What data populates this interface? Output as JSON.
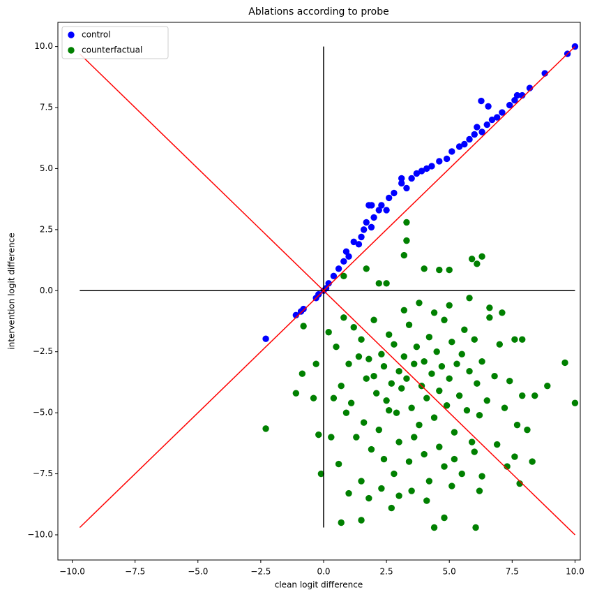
{
  "chart_data": {
    "type": "scatter",
    "title": "Ablations according to probe",
    "xlabel": "clean logit difference",
    "ylabel": "intervention logit difference",
    "xlim": [
      -10.57,
      10.21
    ],
    "ylim": [
      -11.03,
      10.99
    ],
    "xticks": [
      {
        "value": -10,
        "label": "−10.0"
      },
      {
        "value": -7.5,
        "label": "−7.5"
      },
      {
        "value": -5,
        "label": "−5.0"
      },
      {
        "value": -2.5,
        "label": "−2.5"
      },
      {
        "value": 0,
        "label": "0.0"
      },
      {
        "value": 2.5,
        "label": "2.5"
      },
      {
        "value": 5,
        "label": "5.0"
      },
      {
        "value": 7.5,
        "label": "7.5"
      },
      {
        "value": 10,
        "label": "10.0"
      }
    ],
    "yticks": [
      {
        "value": -10,
        "label": "−10.0"
      },
      {
        "value": -7.5,
        "label": "−7.5"
      },
      {
        "value": -5,
        "label": "−5.0"
      },
      {
        "value": -2.5,
        "label": "−2.5"
      },
      {
        "value": 0,
        "label": "0.0"
      },
      {
        "value": 2.5,
        "label": "2.5"
      },
      {
        "value": 5,
        "label": "5.0"
      },
      {
        "value": 7.5,
        "label": "7.5"
      },
      {
        "value": 10,
        "label": "10.0"
      }
    ],
    "grid": false,
    "legend": "upper-left",
    "series": [
      {
        "name": "control",
        "color": "#0000ff",
        "x": [
          -2.3,
          -1.1,
          -0.9,
          -0.8,
          -0.3,
          -0.2,
          0,
          0.1,
          0.2,
          0.4,
          0.6,
          0.8,
          0.9,
          1.0,
          1.2,
          1.4,
          1.5,
          1.6,
          1.7,
          1.8,
          1.9,
          2.0,
          2.2,
          2.3,
          2.5,
          2.6,
          2.8,
          3.1,
          3.1,
          3.3,
          3.5,
          3.7,
          3.9,
          4.1,
          4.3,
          4.6,
          4.9,
          5.1,
          5.4,
          5.6,
          5.8,
          6.0,
          6.1,
          6.3,
          6.27,
          6.55,
          6.5,
          6.7,
          6.9,
          7.1,
          7.4,
          7.6,
          7.7,
          7.9,
          8.2,
          8.8,
          9.7,
          10,
          1.91
        ],
        "y": [
          -1.97,
          -1.0,
          -0.85,
          -0.75,
          -0.3,
          -0.15,
          0,
          0.1,
          0.3,
          0.6,
          0.9,
          1.2,
          1.6,
          1.4,
          2.0,
          1.9,
          2.2,
          2.5,
          2.8,
          3.5,
          2.6,
          3.0,
          3.3,
          3.5,
          3.3,
          3.8,
          4.0,
          4.4,
          4.6,
          4.2,
          4.6,
          4.8,
          4.9,
          5.0,
          5.1,
          5.3,
          5.4,
          5.7,
          5.9,
          6.0,
          6.2,
          6.4,
          6.7,
          6.5,
          7.77,
          7.55,
          6.8,
          7.0,
          7.1,
          7.3,
          7.6,
          7.8,
          8.0,
          8.0,
          8.3,
          8.9,
          9.7,
          10,
          3.5
        ]
      },
      {
        "name": "counterfactual",
        "color": "#008000",
        "x": [
          1.2,
          1.5,
          1.8,
          2.0,
          2.1,
          2.3,
          2.4,
          2.5,
          2.6,
          2.7,
          2.8,
          2.9,
          3.0,
          3.1,
          3.2,
          3.3,
          3.4,
          3.5,
          3.6,
          3.7,
          3.8,
          3.9,
          4.0,
          4.1,
          4.2,
          4.3,
          4.4,
          4.5,
          4.6,
          4.7,
          4.8,
          4.9,
          5.0,
          5.1,
          5.2,
          5.3,
          5.4,
          5.5,
          5.6,
          5.7,
          5.8,
          5.9,
          6.0,
          6.1,
          6.2,
          6.3,
          6.5,
          6.6,
          6.8,
          7.0,
          7.2,
          7.4,
          7.6,
          7.7,
          0.5,
          0.7,
          0.8,
          0.9,
          1.0,
          1.1,
          1.3,
          1.4,
          1.6,
          1.7,
          1.9,
          2.0,
          2.2,
          2.4,
          2.6,
          2.8,
          3.0,
          3.2,
          3.4,
          3.6,
          3.8,
          4.0,
          4.2,
          4.4,
          4.6,
          4.8,
          5.0,
          5.2,
          5.5,
          5.8,
          6.0,
          6.3,
          6.6,
          6.9,
          7.3,
          7.1,
          1.5,
          1.8,
          2.3,
          3.0,
          3.5,
          4.1,
          5.1,
          6.2,
          0.3,
          0.6,
          1.0,
          0.4,
          0.2,
          7.9,
          8.1,
          7.6,
          -2.3,
          -1.1,
          -0.8,
          -0.85,
          -0.3,
          -0.2,
          -0.1,
          -0.4,
          0.8,
          1.7,
          3.3,
          3.3,
          3.2,
          4.0,
          4.6,
          5.0,
          5.9,
          6.3,
          6.1,
          2.2,
          2.5,
          0.7,
          1.5,
          2.7,
          4.4,
          4.8,
          6.05,
          9.6,
          10,
          8.9,
          8.3,
          7.8,
          7.9,
          8.4
        ],
        "y": [
          -1.5,
          -2.0,
          -2.8,
          -3.5,
          -4.2,
          -2.6,
          -3.1,
          -4.5,
          -1.8,
          -3.8,
          -2.2,
          -5.0,
          -3.3,
          -4.0,
          -2.7,
          -3.6,
          -1.4,
          -4.8,
          -3.0,
          -2.3,
          -5.5,
          -3.9,
          -2.9,
          -4.4,
          -1.9,
          -3.4,
          -5.2,
          -2.5,
          -4.1,
          -3.1,
          -1.2,
          -4.7,
          -3.6,
          -2.1,
          -5.8,
          -3.0,
          -4.3,
          -2.6,
          -1.6,
          -4.9,
          -3.3,
          -6.2,
          -2.0,
          -3.8,
          -5.1,
          -2.9,
          -4.5,
          -1.1,
          -3.5,
          -2.2,
          -4.8,
          -3.7,
          -2.0,
          -5.5,
          -2.3,
          -3.9,
          -1.1,
          -5.0,
          -3.0,
          -4.6,
          -6.0,
          -2.7,
          -5.4,
          -3.6,
          -6.5,
          -1.2,
          -5.7,
          -6.9,
          -4.9,
          -7.5,
          -6.2,
          -0.8,
          -7.0,
          -6.0,
          -0.5,
          -6.7,
          -7.8,
          -0.9,
          -6.4,
          -7.2,
          -0.6,
          -6.9,
          -7.5,
          -0.3,
          -6.6,
          -7.6,
          -0.7,
          -6.3,
          -7.2,
          -0.9,
          -7.8,
          -8.5,
          -8.1,
          -8.4,
          -8.2,
          -8.6,
          -8.0,
          -8.2,
          -6.0,
          -7.1,
          -8.3,
          -4.4,
          -1.7,
          -4.3,
          -5.7,
          -6.8,
          -5.65,
          -4.2,
          -1.45,
          -3.4,
          -3.0,
          -5.9,
          -7.5,
          -4.4,
          0.6,
          0.9,
          2.8,
          2.05,
          1.45,
          0.9,
          0.85,
          0.85,
          1.3,
          1.4,
          1.1,
          0.3,
          0.3,
          -9.5,
          -9.4,
          -8.9,
          -9.7,
          -9.3,
          -9.7,
          -2.95,
          -4.6,
          -3.9,
          -7.0,
          -7.9,
          -2.0,
          -4.3
        ]
      }
    ],
    "lines": [
      {
        "color": "#000000",
        "x": [
          -9.7,
          10
        ],
        "y": [
          0,
          0
        ]
      },
      {
        "color": "#000000",
        "x": [
          0,
          0
        ],
        "y": [
          -9.7,
          10
        ]
      },
      {
        "color": "#ff0000",
        "x": [
          -9.7,
          10
        ],
        "y": [
          -9.7,
          10
        ]
      },
      {
        "color": "#ff0000",
        "x": [
          -9.7,
          10
        ],
        "y": [
          9.7,
          -10
        ]
      }
    ]
  }
}
